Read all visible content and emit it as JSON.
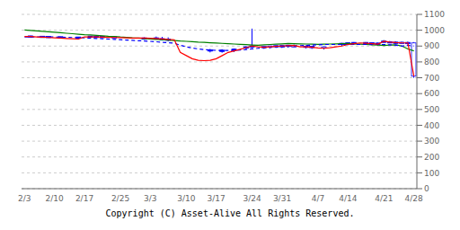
{
  "chart_data": {
    "type": "candlestick",
    "annotation": "Copyright (C) Asset-Alive All Rights Reserved.",
    "categories": [
      "2/3",
      null,
      null,
      null,
      null,
      "2/10",
      null,
      null,
      null,
      null,
      "2/17",
      null,
      null,
      null,
      null,
      null,
      "2/25",
      null,
      null,
      null,
      null,
      "3/3",
      null,
      null,
      null,
      null,
      null,
      "3/10",
      null,
      null,
      null,
      null,
      "3/17",
      null,
      null,
      null,
      null,
      null,
      "3/24",
      null,
      null,
      null,
      null,
      "3/31",
      null,
      null,
      null,
      null,
      null,
      "4/7",
      null,
      null,
      null,
      null,
      "4/14",
      null,
      null,
      null,
      null,
      null,
      "4/21",
      null,
      null,
      null,
      null,
      "4/28"
    ],
    "ylim": [
      0,
      1100
    ],
    "yticks": [
      0,
      100,
      200,
      300,
      400,
      500,
      600,
      700,
      800,
      900,
      1000,
      1100
    ],
    "grid": true,
    "series": [
      {
        "type": "line",
        "color": "green",
        "line_style": "solid",
        "values": [
          1002,
          999,
          996,
          993,
          990,
          987,
          984,
          981,
          978,
          975,
          972,
          970,
          968,
          965,
          962,
          960,
          957,
          955,
          952,
          950,
          948,
          945,
          942,
          940,
          938,
          935,
          932,
          930,
          928,
          925,
          923,
          921,
          919,
          917,
          915,
          913,
          911,
          909,
          907,
          905,
          908,
          910,
          912,
          914,
          916,
          915,
          914,
          913,
          912,
          911,
          912,
          913,
          914,
          915,
          916,
          914,
          912,
          910,
          908,
          906,
          904,
          906,
          908,
          900,
          882,
          870
        ]
      },
      {
        "type": "line",
        "color": "blue",
        "line_style": "dashed",
        "values": [
          958,
          958,
          958,
          958,
          958,
          957,
          956,
          955,
          954,
          953,
          952,
          950,
          948,
          946,
          944,
          942,
          940,
          938,
          936,
          934,
          932,
          930,
          927,
          924,
          921,
          918,
          905,
          895,
          888,
          882,
          878,
          875,
          873,
          872,
          872,
          873,
          875,
          878,
          882,
          886,
          890,
          892,
          894,
          896,
          898,
          900,
          902,
          904,
          906,
          908,
          910,
          910,
          910,
          910,
          910,
          910,
          910,
          910,
          910,
          910,
          910,
          908,
          905,
          900,
          905,
          900
        ]
      },
      {
        "type": "line",
        "color": "red",
        "line_style": "solid",
        "values": [
          960,
          960,
          958,
          956,
          954,
          952,
          950,
          948,
          946,
          944,
          958,
          958,
          957,
          956,
          955,
          954,
          953,
          952,
          951,
          950,
          950,
          949,
          948,
          945,
          942,
          940,
          860,
          840,
          820,
          810,
          808,
          810,
          820,
          840,
          860,
          870,
          880,
          890,
          900,
          895,
          892,
          895,
          898,
          900,
          902,
          904,
          895,
          895,
          892,
          888,
          886,
          890,
          895,
          900,
          910,
          915,
          920,
          918,
          915,
          912,
          930,
          925,
          922,
          920,
          920,
          710
        ]
      },
      {
        "type": "candlestick",
        "color": "blue",
        "open": [
          null,
          960,
          null,
          958,
          957,
          null,
          955,
          null,
          null,
          953,
          null,
          959,
          958,
          957,
          null,
          955,
          null,
          null,
          null,
          null,
          950,
          null,
          948,
          946,
          942,
          null,
          null,
          null,
          null,
          null,
          null,
          875,
          null,
          872,
          null,
          875,
          null,
          890,
          895,
          null,
          892,
          895,
          898,
          898,
          900,
          902,
          null,
          896,
          895,
          null,
          890,
          null,
          null,
          912,
          915,
          918,
          null,
          918,
          916,
          915,
          930,
          925,
          922,
          920,
          920,
          920
        ],
        "high": [
          null,
          965,
          null,
          963,
          962,
          null,
          960,
          null,
          null,
          958,
          null,
          964,
          963,
          962,
          null,
          960,
          null,
          null,
          null,
          null,
          955,
          null,
          960,
          958,
          955,
          null,
          null,
          null,
          null,
          null,
          null,
          882,
          null,
          880,
          null,
          885,
          null,
          900,
          1010,
          null,
          900,
          902,
          905,
          905,
          908,
          910,
          null,
          904,
          902,
          null,
          898,
          null,
          null,
          920,
          922,
          925,
          null,
          925,
          922,
          922,
          938,
          932,
          930,
          928,
          928,
          925
        ],
        "low": [
          null,
          955,
          null,
          953,
          952,
          null,
          950,
          null,
          null,
          948,
          null,
          954,
          953,
          952,
          null,
          950,
          null,
          null,
          null,
          null,
          940,
          null,
          942,
          935,
          930,
          null,
          null,
          null,
          null,
          null,
          null,
          860,
          null,
          858,
          null,
          862,
          null,
          878,
          888,
          null,
          882,
          885,
          888,
          888,
          890,
          892,
          null,
          885,
          882,
          null,
          878,
          null,
          null,
          900,
          905,
          908,
          null,
          908,
          905,
          903,
          920,
          918,
          915,
          913,
          910,
          700
        ],
        "close": [
          null,
          960,
          null,
          958,
          957,
          null,
          955,
          null,
          null,
          953,
          null,
          959,
          958,
          957,
          null,
          955,
          null,
          null,
          null,
          null,
          945,
          null,
          948,
          940,
          938,
          null,
          null,
          null,
          null,
          null,
          null,
          870,
          null,
          868,
          null,
          878,
          null,
          892,
          900,
          null,
          895,
          898,
          900,
          900,
          903,
          895,
          null,
          895,
          893,
          null,
          892,
          null,
          null,
          915,
          918,
          920,
          null,
          920,
          918,
          915,
          925,
          922,
          920,
          920,
          918,
          710
        ],
        "filled": [
          null,
          true,
          null,
          true,
          true,
          null,
          true,
          null,
          null,
          true,
          null,
          true,
          true,
          true,
          null,
          false,
          null,
          null,
          null,
          null,
          true,
          null,
          true,
          false,
          true,
          null,
          null,
          null,
          null,
          null,
          null,
          true,
          null,
          true,
          null,
          true,
          null,
          true,
          true,
          null,
          false,
          false,
          false,
          true,
          true,
          false,
          null,
          true,
          true,
          null,
          false,
          null,
          null,
          true,
          true,
          true,
          null,
          true,
          true,
          true,
          true,
          true,
          true,
          false,
          true,
          false
        ]
      }
    ]
  }
}
